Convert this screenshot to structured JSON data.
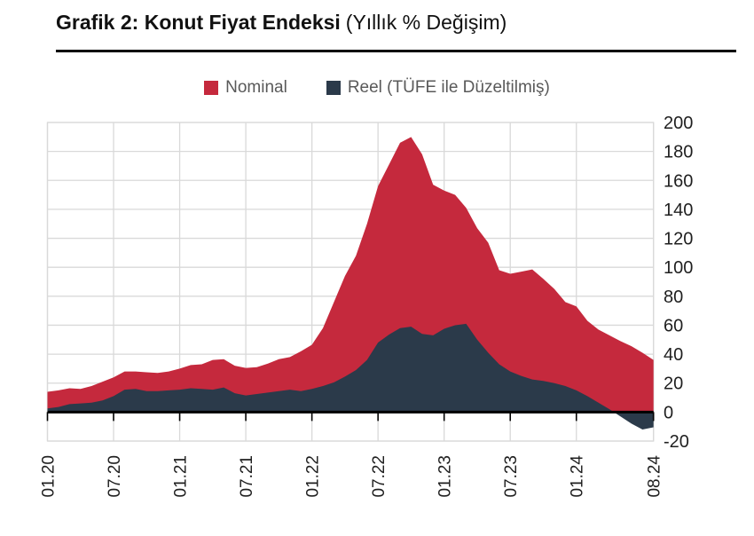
{
  "title": {
    "main": "Grafik 2: Konut Fiyat Endeksi",
    "subtitle": "(Yıllık % Değişim)"
  },
  "legend": {
    "items": [
      {
        "id": "nominal",
        "label": "Nominal",
        "color": "#C5293D"
      },
      {
        "id": "reel",
        "label": "Reel (TÜFE ile Düzeltilmiş)",
        "color": "#2B3A4A"
      }
    ]
  },
  "chart_data": {
    "type": "area",
    "title": "Konut Fiyat Endeksi (Yıllık % Değişim)",
    "x_unit": "month",
    "x_start": "2020-01",
    "x_end": "2024-08",
    "x_tick_labels": [
      "01.20",
      "07.20",
      "01.21",
      "07.21",
      "01.22",
      "07.22",
      "01.23",
      "07.23",
      "01.24",
      "08.24"
    ],
    "x_tick_month_index": [
      0,
      6,
      12,
      18,
      24,
      30,
      36,
      42,
      48,
      55
    ],
    "ylim": [
      -20,
      200
    ],
    "y_tick_step": 20,
    "y_tick_labels": [
      "200",
      "180",
      "160",
      "140",
      "120",
      "100",
      "80",
      "60",
      "40",
      "20",
      "0",
      "-20"
    ],
    "y_axis_side": "right",
    "grid": true,
    "baseline": 0,
    "series": [
      {
        "id": "nominal",
        "name": "Nominal",
        "color": "#C5293D",
        "values": [
          14,
          15,
          16.5,
          16,
          18,
          21,
          24,
          28,
          28,
          27.5,
          27,
          28,
          30,
          32.5,
          33,
          36,
          36.5,
          32,
          30.5,
          31,
          33.5,
          36.5,
          38,
          42,
          46.5,
          58,
          76,
          94,
          108,
          130,
          156,
          171,
          186,
          190,
          178,
          157,
          153,
          150,
          141,
          127,
          117,
          98,
          95.5,
          97,
          98.5,
          92,
          85,
          76,
          73,
          63,
          57,
          53,
          49,
          45.5,
          41,
          36
        ]
      },
      {
        "id": "reel",
        "name": "Reel (TÜFE ile Düzeltilmiş)",
        "color": "#2B3A4A",
        "values": [
          2.5,
          3.5,
          5.5,
          6,
          6.5,
          8,
          11,
          15.5,
          16,
          14.5,
          14.5,
          15,
          15.5,
          16.5,
          16,
          15.5,
          17,
          13,
          11.5,
          12.5,
          13.5,
          14.5,
          15.5,
          14.5,
          16,
          18,
          20.5,
          24.5,
          29,
          36,
          48,
          53.5,
          58,
          59,
          54,
          53,
          57.5,
          60,
          61,
          50,
          41,
          33,
          28,
          25,
          22.5,
          21.5,
          20,
          18,
          15,
          11,
          6.5,
          2,
          -3,
          -8,
          -12,
          -10.5
        ]
      }
    ]
  },
  "colors": {
    "grid": "#D9D9D9",
    "axis": "#000000",
    "tick_label": "#1F1F1F",
    "legend_text": "#595959",
    "title_text": "#111111",
    "background": "#FFFFFF"
  }
}
